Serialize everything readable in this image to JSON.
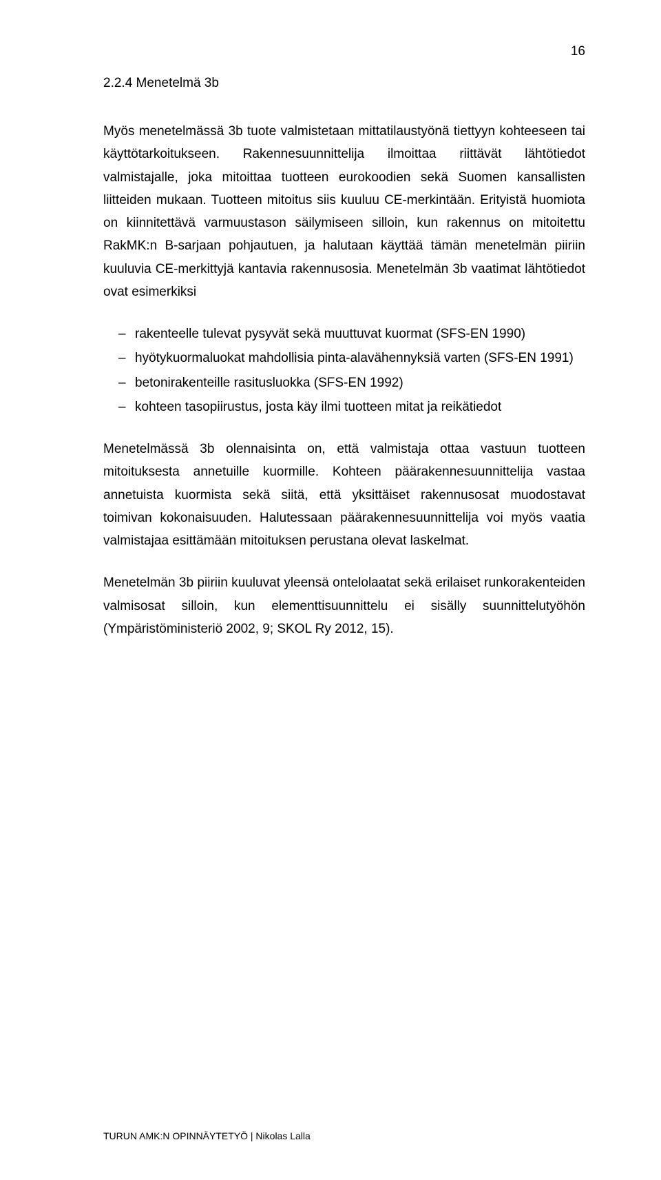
{
  "page_number": "16",
  "heading": "2.2.4 Menetelmä 3b",
  "para1": "Myös menetelmässä 3b tuote valmistetaan mittatilaustyönä tiettyyn kohteeseen tai käyttötarkoitukseen. Rakennesuunnittelija ilmoittaa riittävät lähtötiedot valmistajalle, joka mitoittaa tuotteen eurokoodien sekä Suomen kansallisten liitteiden mukaan. Tuotteen mitoitus siis kuuluu CE-merkintään. Erityistä huomiota on kiinnitettävä varmuustason säilymiseen silloin, kun rakennus on mitoitettu RakMK:n B-sarjaan pohjautuen, ja halutaan käyttää tämän menetelmän piiriin kuuluvia CE-merkittyjä kantavia rakennusosia. Menetelmän 3b vaatimat lähtötiedot ovat esimerkiksi",
  "list": [
    "rakenteelle tulevat pysyvät sekä muuttuvat kuormat (SFS-EN 1990)",
    "hyötykuormaluokat mahdollisia pinta-alavähennyksiä varten (SFS-EN 1991)",
    "betonirakenteille rasitusluokka (SFS-EN 1992)",
    "kohteen tasopiirustus, josta käy ilmi tuotteen mitat ja reikätiedot"
  ],
  "para2": "Menetelmässä 3b olennaisinta on, että valmistaja ottaa vastuun tuotteen mitoituksesta annetuille kuormille. Kohteen päärakennesuunnittelija vastaa annetuista kuormista sekä siitä, että yksittäiset rakennusosat muodostavat toimivan kokonaisuuden. Halutessaan päärakennesuunnittelija voi myös vaatia valmistajaa esittämään mitoituksen perustana olevat laskelmat.",
  "para3": "Menetelmän 3b piiriin kuuluvat yleensä ontelolaatat sekä erilaiset runkorakenteiden valmisosat silloin, kun elementtisuunnittelu ei sisälly suunnittelutyöhön (Ympäristöministeriö 2002, 9; SKOL Ry 2012, 15).",
  "footer": "TURUN AMK:N OPINNÄYTETYÖ | Nikolas Lalla"
}
